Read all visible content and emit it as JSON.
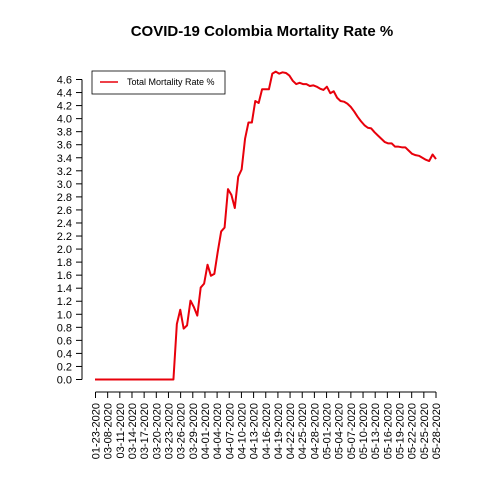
{
  "chart_data": {
    "type": "line",
    "title": "COVID-19 Colombia Mortality Rate %",
    "xlabel": "",
    "ylabel": "",
    "x_ticks": [
      "01-23-2020",
      "03-08-2020",
      "03-11-2020",
      "03-14-2020",
      "03-17-2020",
      "03-20-2020",
      "03-23-2020",
      "03-26-2020",
      "03-29-2020",
      "04-01-2020",
      "04-04-2020",
      "04-07-2020",
      "04-10-2020",
      "04-13-2020",
      "04-16-2020",
      "04-19-2020",
      "04-22-2020",
      "04-25-2020",
      "04-28-2020",
      "05-01-2020",
      "05-04-2020",
      "05-07-2020",
      "05-10-2020",
      "05-13-2020",
      "05-16-2020",
      "05-19-2020",
      "05-22-2020",
      "05-25-2020",
      "05-28-2020"
    ],
    "y_ticks": [
      "0.0",
      "0.2",
      "0.4",
      "0.6",
      "0.8",
      "1.0",
      "1.2",
      "1.4",
      "1.6",
      "1.8",
      "2.0",
      "2.2",
      "2.4",
      "2.6",
      "2.8",
      "3.0",
      "3.2",
      "3.4",
      "3.6",
      "3.8",
      "4.0",
      "4.2",
      "4.4",
      "4.6"
    ],
    "ylim": [
      0,
      4.6
    ],
    "grid": false,
    "legend_position": "top-left",
    "series": [
      {
        "name": "Total Mortality Rate %",
        "color": "#e8000b",
        "values": [
          0,
          0,
          0,
          0,
          0,
          0,
          0,
          0,
          0,
          0,
          0,
          0,
          0,
          0,
          0,
          0,
          0,
          0,
          0,
          0,
          0,
          0,
          0,
          0,
          0.85,
          1.07,
          0.78,
          0.83,
          1.21,
          1.11,
          0.98,
          1.41,
          1.47,
          1.76,
          1.59,
          1.62,
          1.96,
          2.27,
          2.33,
          2.92,
          2.83,
          2.63,
          3.11,
          3.22,
          3.69,
          3.94,
          3.94,
          4.27,
          4.24,
          4.45,
          4.45,
          4.45,
          4.69,
          4.72,
          4.69,
          4.71,
          4.7,
          4.66,
          4.58,
          4.53,
          4.55,
          4.53,
          4.53,
          4.5,
          4.51,
          4.49,
          4.46,
          4.44,
          4.49,
          4.39,
          4.42,
          4.32,
          4.27,
          4.26,
          4.23,
          4.18,
          4.11,
          4.03,
          3.96,
          3.9,
          3.86,
          3.85,
          3.79,
          3.74,
          3.69,
          3.64,
          3.62,
          3.62,
          3.57,
          3.57,
          3.56,
          3.56,
          3.51,
          3.46,
          3.44,
          3.43,
          3.4,
          3.37,
          3.35,
          3.45,
          3.38
        ]
      }
    ]
  }
}
